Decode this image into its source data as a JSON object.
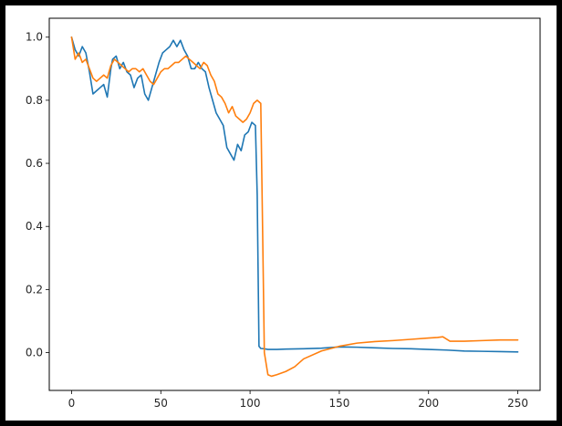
{
  "chart_data": {
    "type": "line",
    "title": "",
    "xlabel": "",
    "ylabel": "",
    "xlim": [
      -12.5,
      262.5
    ],
    "ylim": [
      -0.12,
      1.06
    ],
    "grid": false,
    "legend": "none",
    "x_ticks": [
      0,
      50,
      100,
      150,
      200,
      250
    ],
    "x_tick_labels": [
      "0",
      "50",
      "100",
      "150",
      "200",
      "250"
    ],
    "y_ticks": [
      0.0,
      0.2,
      0.4,
      0.6,
      0.8,
      1.0
    ],
    "y_tick_labels": [
      "0.0",
      "0.2",
      "0.4",
      "0.6",
      "0.8",
      "1.0"
    ],
    "series": [
      {
        "color": "#1f77b4",
        "x": [
          0,
          2,
          4,
          6,
          8,
          10,
          12,
          14,
          16,
          18,
          20,
          22,
          23,
          25,
          27,
          29,
          31,
          33,
          35,
          37,
          39,
          41,
          43,
          45,
          47,
          49,
          51,
          53,
          55,
          57,
          59,
          61,
          63,
          65,
          67,
          69,
          71,
          73,
          75,
          77,
          79,
          81,
          83,
          85,
          87,
          89,
          91,
          93,
          95,
          97,
          99,
          101,
          103,
          104,
          105,
          106,
          108,
          110,
          115,
          120,
          130,
          140,
          150,
          160,
          170,
          180,
          190,
          200,
          210,
          220,
          230,
          240,
          250
        ],
        "y": [
          1.0,
          0.96,
          0.94,
          0.97,
          0.95,
          0.89,
          0.82,
          0.83,
          0.84,
          0.85,
          0.81,
          0.9,
          0.93,
          0.94,
          0.9,
          0.92,
          0.89,
          0.88,
          0.84,
          0.87,
          0.88,
          0.82,
          0.8,
          0.84,
          0.88,
          0.92,
          0.95,
          0.96,
          0.97,
          0.99,
          0.97,
          0.99,
          0.96,
          0.94,
          0.9,
          0.9,
          0.92,
          0.9,
          0.89,
          0.84,
          0.8,
          0.76,
          0.74,
          0.72,
          0.65,
          0.63,
          0.61,
          0.66,
          0.64,
          0.69,
          0.7,
          0.73,
          0.72,
          0.5,
          0.02,
          0.013,
          0.012,
          0.01,
          0.01,
          0.011,
          0.012,
          0.014,
          0.018,
          0.017,
          0.015,
          0.013,
          0.012,
          0.01,
          0.008,
          0.005,
          0.004,
          0.003,
          0.002
        ]
      },
      {
        "color": "#ff7f0e",
        "x": [
          0,
          2,
          4,
          6,
          8,
          10,
          12,
          14,
          16,
          18,
          20,
          22,
          24,
          26,
          28,
          30,
          32,
          34,
          36,
          38,
          40,
          42,
          44,
          46,
          48,
          50,
          52,
          54,
          56,
          58,
          60,
          62,
          64,
          66,
          68,
          70,
          72,
          74,
          76,
          78,
          80,
          82,
          84,
          86,
          88,
          90,
          92,
          94,
          96,
          98,
          100,
          102,
          104,
          106,
          107,
          108,
          110,
          112,
          115,
          120,
          125,
          130,
          140,
          150,
          160,
          170,
          180,
          190,
          200,
          205,
          208,
          212,
          220,
          230,
          240,
          250
        ],
        "y": [
          1.0,
          0.93,
          0.95,
          0.92,
          0.93,
          0.9,
          0.87,
          0.86,
          0.87,
          0.88,
          0.87,
          0.91,
          0.93,
          0.92,
          0.91,
          0.9,
          0.89,
          0.9,
          0.9,
          0.89,
          0.9,
          0.88,
          0.86,
          0.85,
          0.87,
          0.89,
          0.9,
          0.9,
          0.91,
          0.92,
          0.92,
          0.93,
          0.94,
          0.93,
          0.92,
          0.91,
          0.9,
          0.92,
          0.91,
          0.88,
          0.86,
          0.82,
          0.81,
          0.79,
          0.76,
          0.78,
          0.75,
          0.74,
          0.73,
          0.74,
          0.76,
          0.79,
          0.8,
          0.79,
          0.4,
          0.0,
          -0.07,
          -0.075,
          -0.07,
          -0.06,
          -0.045,
          -0.02,
          0.005,
          0.02,
          0.03,
          0.035,
          0.038,
          0.042,
          0.046,
          0.048,
          0.05,
          0.036,
          0.036,
          0.038,
          0.04,
          0.04
        ]
      }
    ]
  }
}
